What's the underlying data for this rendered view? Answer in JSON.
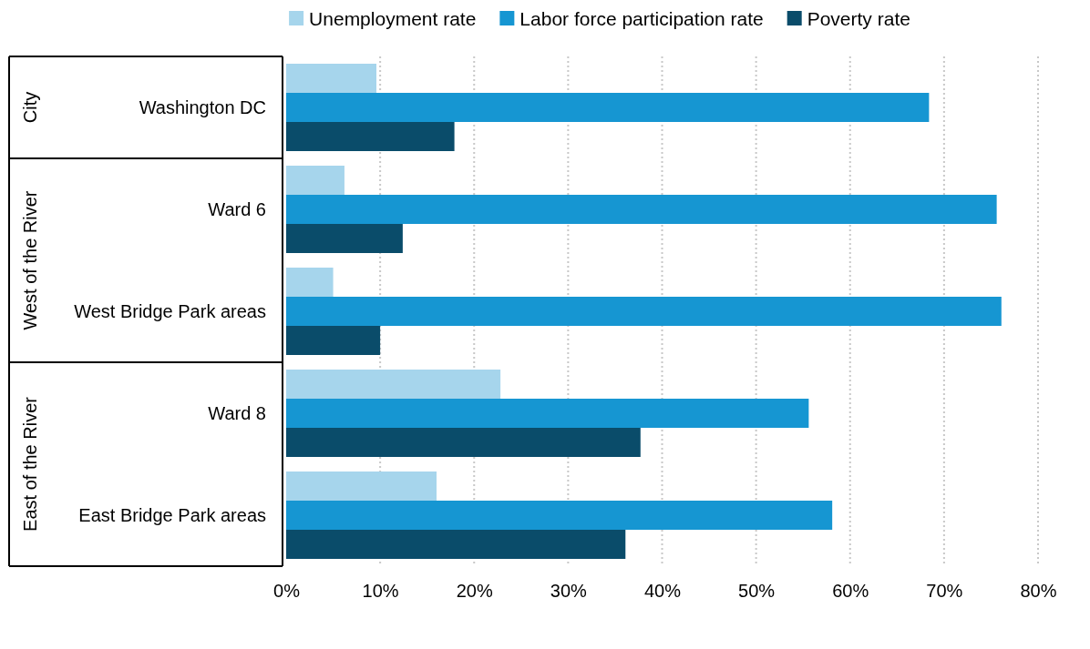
{
  "chart_data": {
    "type": "bar",
    "orientation": "horizontal",
    "categories": [
      "Washington DC",
      "Ward 6",
      "West Bridge Park areas",
      "Ward 8",
      "East Bridge Park areas"
    ],
    "series": [
      {
        "name": "Unemployment rate",
        "color": "#a6d5ec",
        "values": [
          9.6,
          6.2,
          5.0,
          22.8,
          16.0
        ]
      },
      {
        "name": "Labor force participation rate",
        "color": "#1696d2",
        "values": [
          68.4,
          75.6,
          76.1,
          55.6,
          58.1
        ]
      },
      {
        "name": "Poverty rate",
        "color": "#0a4c6a",
        "values": [
          17.9,
          12.4,
          10.0,
          37.7,
          36.1
        ]
      }
    ],
    "xlim": [
      0,
      80
    ],
    "xticks": [
      {
        "value": 0,
        "label": "0%"
      },
      {
        "value": 10,
        "label": "10%"
      },
      {
        "value": 20,
        "label": "20%"
      },
      {
        "value": 30,
        "label": "30%"
      },
      {
        "value": 40,
        "label": "40%"
      },
      {
        "value": 50,
        "label": "50%"
      },
      {
        "value": 60,
        "label": "60%"
      },
      {
        "value": 70,
        "label": "70%"
      },
      {
        "value": 80,
        "label": "80%"
      }
    ],
    "grid": "x",
    "legend": "top",
    "annotations": [
      "City",
      "West of the River",
      "East of the River"
    ]
  }
}
